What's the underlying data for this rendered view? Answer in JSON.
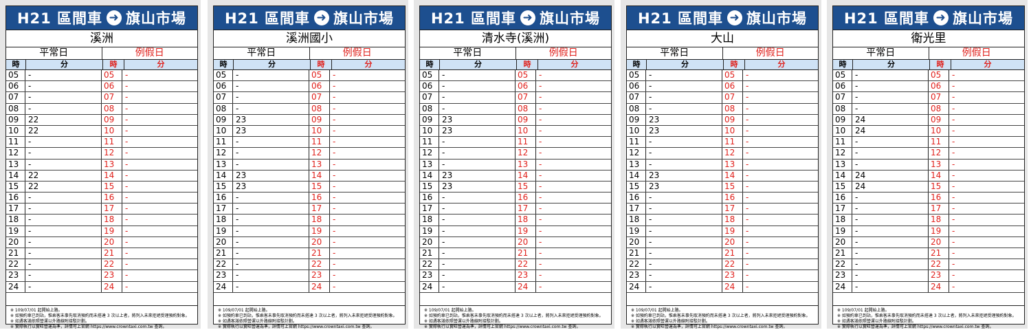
{
  "panels": [
    {
      "route": "H21 區間車",
      "destination": "旗山市場",
      "stop": "溪洲",
      "weekday_label": "平常日",
      "holiday_label": "例假日",
      "hour_label": "時",
      "minute_label": "分",
      "rows": [
        {
          "hour": "05",
          "weekday": "-",
          "holiday": "-"
        },
        {
          "hour": "06",
          "weekday": "-",
          "holiday": "-"
        },
        {
          "hour": "07",
          "weekday": "-",
          "holiday": "-"
        },
        {
          "hour": "08",
          "weekday": "-",
          "holiday": "-"
        },
        {
          "hour": "09",
          "weekday": "22",
          "holiday": "-"
        },
        {
          "hour": "10",
          "weekday": "22",
          "holiday": "-"
        },
        {
          "hour": "11",
          "weekday": "-",
          "holiday": "-"
        },
        {
          "hour": "12",
          "weekday": "-",
          "holiday": "-"
        },
        {
          "hour": "13",
          "weekday": "-",
          "holiday": "-"
        },
        {
          "hour": "14",
          "weekday": "22",
          "holiday": "-"
        },
        {
          "hour": "15",
          "weekday": "22",
          "holiday": "-"
        },
        {
          "hour": "16",
          "weekday": "-",
          "holiday": "-"
        },
        {
          "hour": "17",
          "weekday": "-",
          "holiday": "-"
        },
        {
          "hour": "18",
          "weekday": "-",
          "holiday": "-"
        },
        {
          "hour": "19",
          "weekday": "-",
          "holiday": "-"
        },
        {
          "hour": "20",
          "weekday": "-",
          "holiday": "-"
        },
        {
          "hour": "21",
          "weekday": "-",
          "holiday": "-"
        },
        {
          "hour": "22",
          "weekday": "-",
          "holiday": "-"
        },
        {
          "hour": "23",
          "weekday": "-",
          "holiday": "-"
        },
        {
          "hour": "24",
          "weekday": "-",
          "holiday": "-"
        }
      ],
      "notes": [
        "※ 109/07/01 起開始上路。",
        "※ 如預約車已到站，惟乘客未事先取消預約而未搭達 3 次以上者，將列入未來拒絕受理預約對象。",
        "※ 如遇客滿依照營運以外路線附接駁計劃。",
        "※ 實際執行以實旺營運為準，詳情可上官網 https://www.crowntaxi.com.tw 查詢。"
      ]
    },
    {
      "route": "H21 區間車",
      "destination": "旗山市場",
      "stop": "溪洲國小",
      "weekday_label": "平常日",
      "holiday_label": "例假日",
      "hour_label": "時",
      "minute_label": "分",
      "rows": [
        {
          "hour": "05",
          "weekday": "-",
          "holiday": "-"
        },
        {
          "hour": "06",
          "weekday": "-",
          "holiday": "-"
        },
        {
          "hour": "07",
          "weekday": "-",
          "holiday": "-"
        },
        {
          "hour": "08",
          "weekday": "-",
          "holiday": "-"
        },
        {
          "hour": "09",
          "weekday": "23",
          "holiday": "-"
        },
        {
          "hour": "10",
          "weekday": "23",
          "holiday": "-"
        },
        {
          "hour": "11",
          "weekday": "-",
          "holiday": "-"
        },
        {
          "hour": "12",
          "weekday": "-",
          "holiday": "-"
        },
        {
          "hour": "13",
          "weekday": "-",
          "holiday": "-"
        },
        {
          "hour": "14",
          "weekday": "23",
          "holiday": "-"
        },
        {
          "hour": "15",
          "weekday": "23",
          "holiday": "-"
        },
        {
          "hour": "16",
          "weekday": "-",
          "holiday": "-"
        },
        {
          "hour": "17",
          "weekday": "-",
          "holiday": "-"
        },
        {
          "hour": "18",
          "weekday": "-",
          "holiday": "-"
        },
        {
          "hour": "19",
          "weekday": "-",
          "holiday": "-"
        },
        {
          "hour": "20",
          "weekday": "-",
          "holiday": "-"
        },
        {
          "hour": "21",
          "weekday": "-",
          "holiday": "-"
        },
        {
          "hour": "22",
          "weekday": "-",
          "holiday": "-"
        },
        {
          "hour": "23",
          "weekday": "-",
          "holiday": "-"
        },
        {
          "hour": "24",
          "weekday": "-",
          "holiday": "-"
        }
      ],
      "notes": [
        "※ 109/07/01 起開始上路。",
        "※ 如預約車已到站，惟乘客未事先取消預約而未搭達 3 次以上者，將列入未來拒絕受理預約對象。",
        "※ 如遇客滿依照營運以外路線附接駁計劃。",
        "※ 實際執行以實旺營運為準，詳情可上官網 https://www.crowntaxi.com.tw 查詢。"
      ]
    },
    {
      "route": "H21 區間車",
      "destination": "旗山市場",
      "stop": "清水寺(溪洲)",
      "weekday_label": "平常日",
      "holiday_label": "例假日",
      "hour_label": "時",
      "minute_label": "分",
      "rows": [
        {
          "hour": "05",
          "weekday": "-",
          "holiday": "-"
        },
        {
          "hour": "06",
          "weekday": "-",
          "holiday": "-"
        },
        {
          "hour": "07",
          "weekday": "-",
          "holiday": "-"
        },
        {
          "hour": "08",
          "weekday": "-",
          "holiday": "-"
        },
        {
          "hour": "09",
          "weekday": "23",
          "holiday": "-"
        },
        {
          "hour": "10",
          "weekday": "23",
          "holiday": "-"
        },
        {
          "hour": "11",
          "weekday": "-",
          "holiday": "-"
        },
        {
          "hour": "12",
          "weekday": "-",
          "holiday": "-"
        },
        {
          "hour": "13",
          "weekday": "-",
          "holiday": "-"
        },
        {
          "hour": "14",
          "weekday": "23",
          "holiday": "-"
        },
        {
          "hour": "15",
          "weekday": "23",
          "holiday": "-"
        },
        {
          "hour": "16",
          "weekday": "-",
          "holiday": "-"
        },
        {
          "hour": "17",
          "weekday": "-",
          "holiday": "-"
        },
        {
          "hour": "18",
          "weekday": "-",
          "holiday": "-"
        },
        {
          "hour": "19",
          "weekday": "-",
          "holiday": "-"
        },
        {
          "hour": "20",
          "weekday": "-",
          "holiday": "-"
        },
        {
          "hour": "21",
          "weekday": "-",
          "holiday": "-"
        },
        {
          "hour": "22",
          "weekday": "-",
          "holiday": "-"
        },
        {
          "hour": "23",
          "weekday": "-",
          "holiday": "-"
        },
        {
          "hour": "24",
          "weekday": "-",
          "holiday": "-"
        }
      ],
      "notes": [
        "※ 109/07/01 起開始上路。",
        "※ 如預約車已到站，惟乘客未事先取消預約而未搭達 3 次以上者，將列入未來拒絕受理預約對象。",
        "※ 如遇客滿依照營運以外路線附接駁計劃。",
        "※ 實際執行以實旺營運為準，詳情可上官網 https://www.crowntaxi.com.tw 查詢。"
      ]
    },
    {
      "route": "H21 區間車",
      "destination": "旗山市場",
      "stop": "大山",
      "weekday_label": "平常日",
      "holiday_label": "例假日",
      "hour_label": "時",
      "minute_label": "分",
      "rows": [
        {
          "hour": "05",
          "weekday": "-",
          "holiday": "-"
        },
        {
          "hour": "06",
          "weekday": "-",
          "holiday": "-"
        },
        {
          "hour": "07",
          "weekday": "-",
          "holiday": "-"
        },
        {
          "hour": "08",
          "weekday": "-",
          "holiday": "-"
        },
        {
          "hour": "09",
          "weekday": "23",
          "holiday": "-"
        },
        {
          "hour": "10",
          "weekday": "23",
          "holiday": "-"
        },
        {
          "hour": "11",
          "weekday": "-",
          "holiday": "-"
        },
        {
          "hour": "12",
          "weekday": "-",
          "holiday": "-"
        },
        {
          "hour": "13",
          "weekday": "-",
          "holiday": "-"
        },
        {
          "hour": "14",
          "weekday": "23",
          "holiday": "-"
        },
        {
          "hour": "15",
          "weekday": "23",
          "holiday": "-"
        },
        {
          "hour": "16",
          "weekday": "-",
          "holiday": "-"
        },
        {
          "hour": "17",
          "weekday": "-",
          "holiday": "-"
        },
        {
          "hour": "18",
          "weekday": "-",
          "holiday": "-"
        },
        {
          "hour": "19",
          "weekday": "-",
          "holiday": "-"
        },
        {
          "hour": "20",
          "weekday": "-",
          "holiday": "-"
        },
        {
          "hour": "21",
          "weekday": "-",
          "holiday": "-"
        },
        {
          "hour": "22",
          "weekday": "-",
          "holiday": "-"
        },
        {
          "hour": "23",
          "weekday": "-",
          "holiday": "-"
        },
        {
          "hour": "24",
          "weekday": "-",
          "holiday": "-"
        }
      ],
      "notes": [
        "※ 109/07/01 起開始上路。",
        "※ 如預約車已到站，惟乘客未事先取消預約而未搭達 3 次以上者，將列入未來拒絕受理預約對象。",
        "※ 如遇客滿依照營運以外路線附接駁計劃。",
        "※ 實際執行以實旺營運為準，詳情可上官網 https://www.crowntaxi.com.tw 查詢。"
      ]
    },
    {
      "route": "H21 區間車",
      "destination": "旗山市場",
      "stop": "衛光里",
      "weekday_label": "平常日",
      "holiday_label": "例假日",
      "hour_label": "時",
      "minute_label": "分",
      "rows": [
        {
          "hour": "05",
          "weekday": "-",
          "holiday": "-"
        },
        {
          "hour": "06",
          "weekday": "-",
          "holiday": "-"
        },
        {
          "hour": "07",
          "weekday": "-",
          "holiday": "-"
        },
        {
          "hour": "08",
          "weekday": "-",
          "holiday": "-"
        },
        {
          "hour": "09",
          "weekday": "24",
          "holiday": "-"
        },
        {
          "hour": "10",
          "weekday": "24",
          "holiday": "-"
        },
        {
          "hour": "11",
          "weekday": "-",
          "holiday": "-"
        },
        {
          "hour": "12",
          "weekday": "-",
          "holiday": "-"
        },
        {
          "hour": "13",
          "weekday": "-",
          "holiday": "-"
        },
        {
          "hour": "14",
          "weekday": "24",
          "holiday": "-"
        },
        {
          "hour": "15",
          "weekday": "24",
          "holiday": "-"
        },
        {
          "hour": "16",
          "weekday": "-",
          "holiday": "-"
        },
        {
          "hour": "17",
          "weekday": "-",
          "holiday": "-"
        },
        {
          "hour": "18",
          "weekday": "-",
          "holiday": "-"
        },
        {
          "hour": "19",
          "weekday": "-",
          "holiday": "-"
        },
        {
          "hour": "20",
          "weekday": "-",
          "holiday": "-"
        },
        {
          "hour": "21",
          "weekday": "-",
          "holiday": "-"
        },
        {
          "hour": "22",
          "weekday": "-",
          "holiday": "-"
        },
        {
          "hour": "23",
          "weekday": "-",
          "holiday": "-"
        },
        {
          "hour": "24",
          "weekday": "-",
          "holiday": "-"
        }
      ],
      "notes": [
        "※ 109/07/01 起開始上路。",
        "※ 如預約車已到站，惟乘客未事先取消預約而未搭達 3 次以上者，將列入未來拒絕受理預約對象。",
        "※ 如遇客滿依照營運以外路線附接駁計劃。",
        "※ 實際執行以實旺營運為準，詳情可上官網 https://www.crowntaxi.com.tw 查詢。"
      ]
    }
  ],
  "colors": {
    "header_blue": "#1d4f8f",
    "holiday_red": "#e0201b",
    "colhead_bg": "#cfe2f5"
  }
}
